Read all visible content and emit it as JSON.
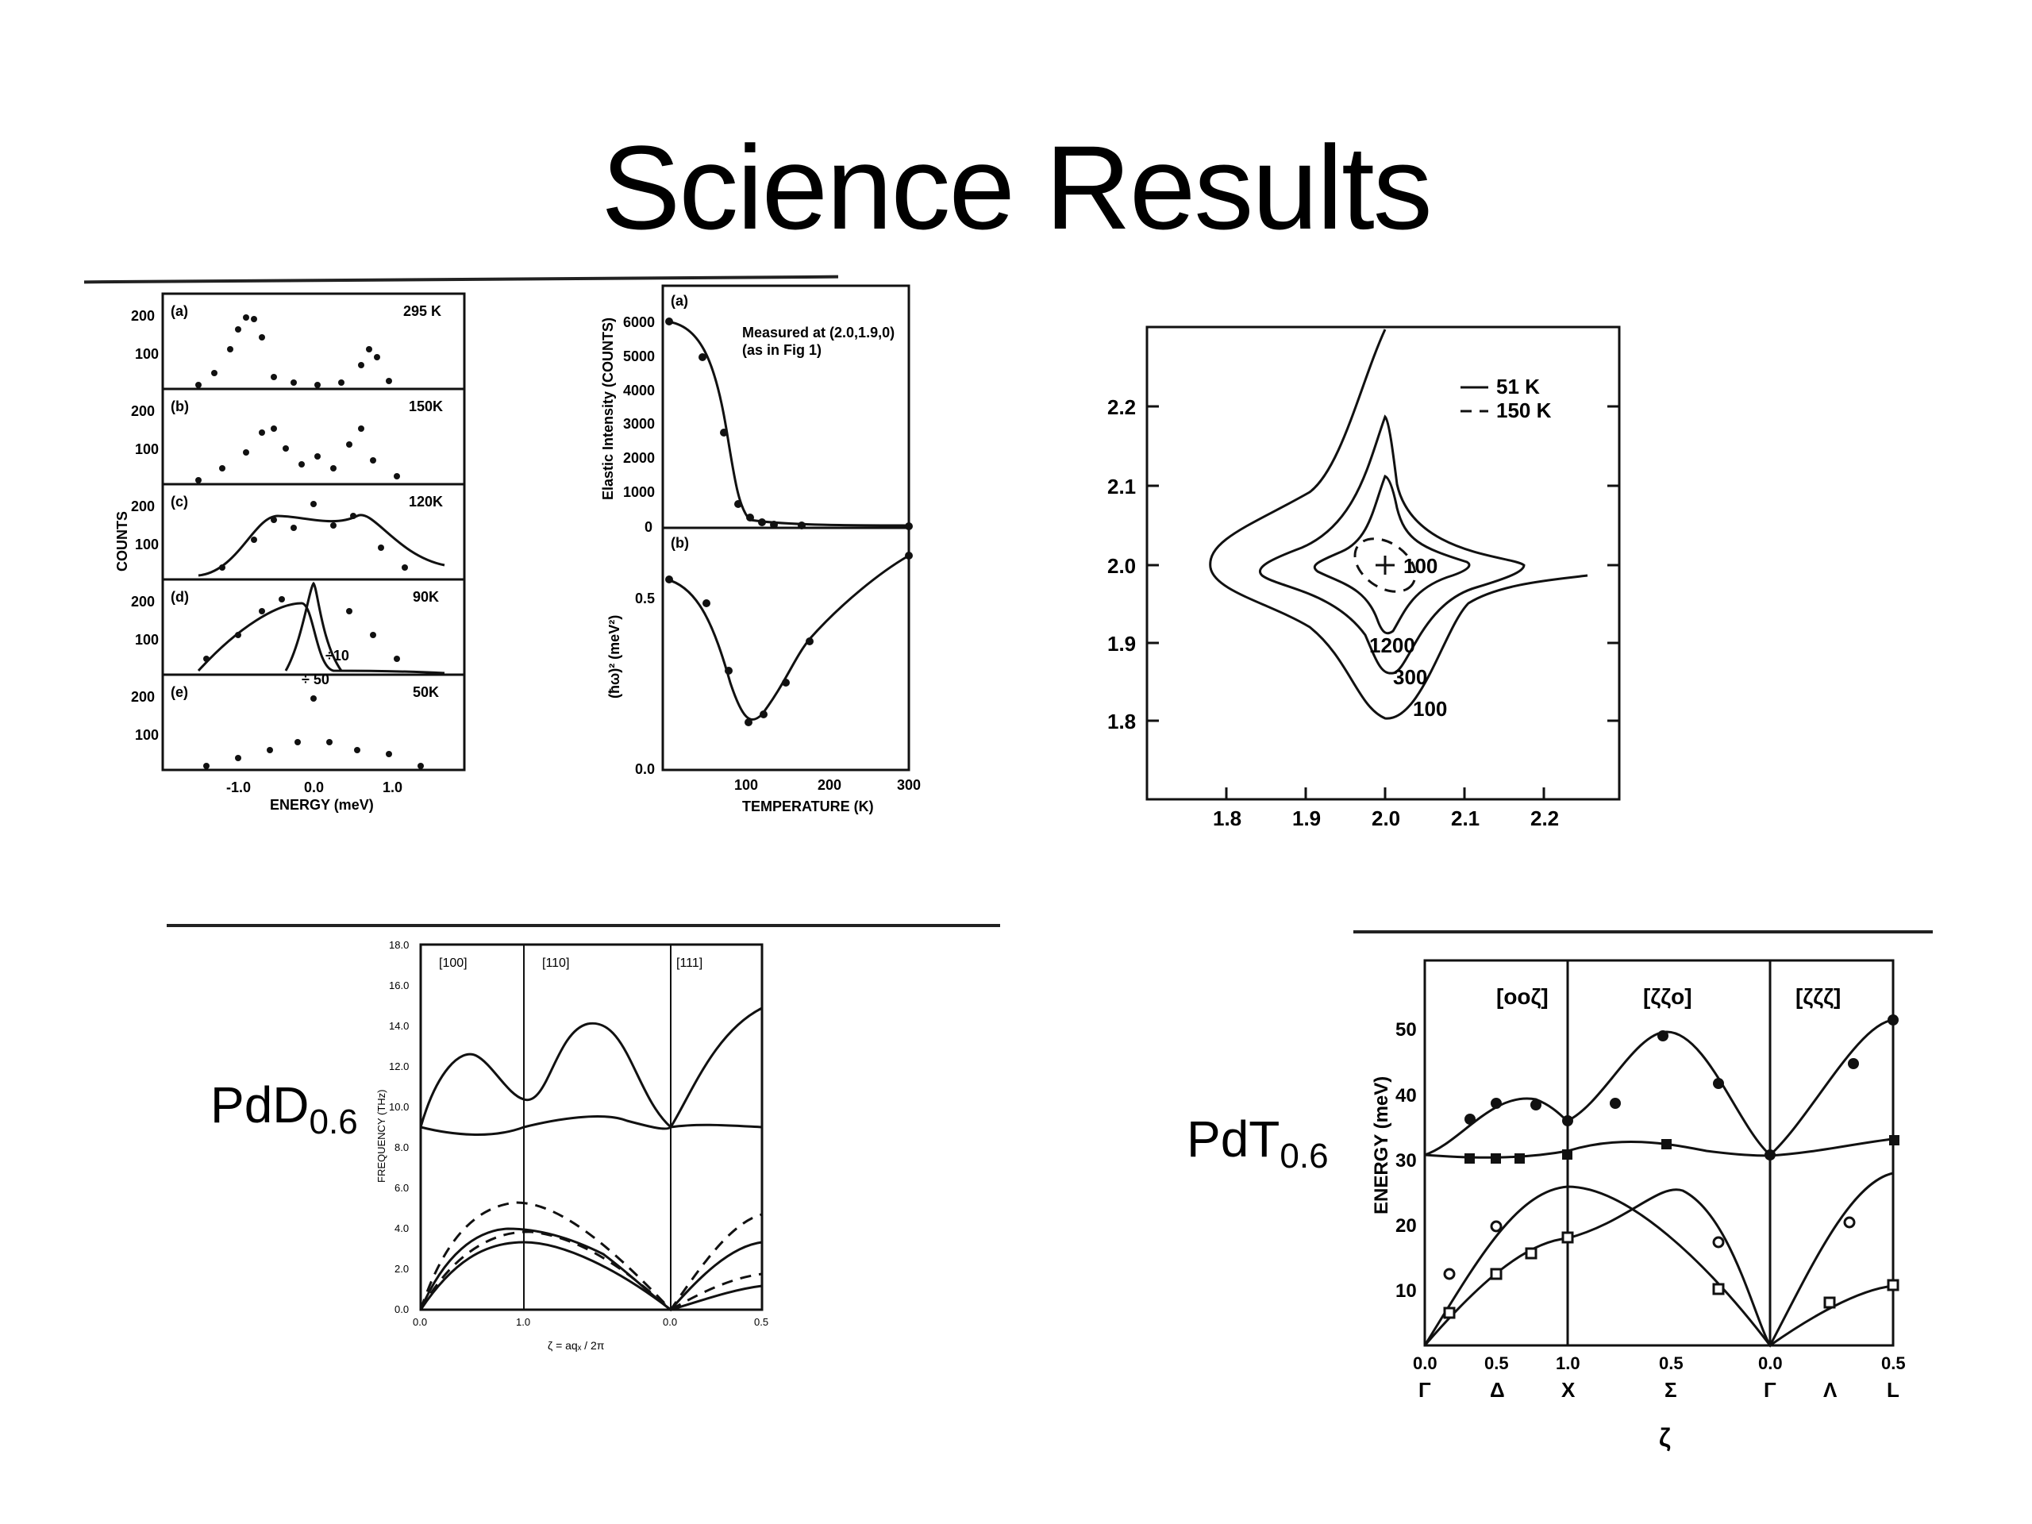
{
  "slide": {
    "title": "Science Results",
    "label_left": {
      "base": "PdD",
      "sub": "0.6"
    },
    "label_right": {
      "base": "PdT",
      "sub": "0.6"
    }
  },
  "fig1": {
    "ylabel": "COUNTS",
    "xlabel": "ENERGY (meV)",
    "xticks": [
      "-1.0",
      "0.0",
      "1.0"
    ],
    "panels": [
      {
        "tag": "(a)",
        "temp": "295 K"
      },
      {
        "tag": "(b)",
        "temp": "150K"
      },
      {
        "tag": "(c)",
        "temp": "120K"
      },
      {
        "tag": "(d)",
        "temp": "90K",
        "note": "÷10"
      },
      {
        "tag": "(e)",
        "temp": "50K",
        "note": "÷ 50"
      }
    ],
    "yticks": [
      "200",
      "100"
    ]
  },
  "fig2": {
    "panel_a": "(a)",
    "panel_b": "(b)",
    "ylabel_a": "Elastic Intensity (COUNTS)",
    "ylabel_b": "(ħω)² (meV²)",
    "note1": "Measured at (2.0,1.9,0)",
    "note2": "(as in Fig 1)",
    "xlabel": "TEMPERATURE (K)",
    "yticks_a": [
      "6000",
      "5000",
      "4000",
      "3000",
      "2000",
      "1000",
      "0"
    ],
    "yticks_b": [
      "0.5",
      "0.0"
    ],
    "xticks": [
      "100",
      "200",
      "300"
    ]
  },
  "fig3": {
    "legend_solid": "51 K",
    "legend_dash": "150 K",
    "xticks": [
      "1.8",
      "1.9",
      "2.0",
      "2.1",
      "2.2"
    ],
    "yticks": [
      "2.2",
      "2.1",
      "2.0",
      "1.9",
      "1.8"
    ],
    "levels": [
      "100",
      "1200",
      "300",
      "100"
    ]
  },
  "fig4": {
    "ylabel": "FREQUENCY (THz)",
    "xlabel": "ζ = aqₓ / 2π",
    "dirs": [
      "[100]",
      "[110]",
      "[111]"
    ],
    "yticks": [
      "18.0",
      "16.0",
      "14.0",
      "12.0",
      "10.0",
      "8.0",
      "6.0",
      "4.0",
      "2.0",
      "0.0"
    ],
    "xticks": [
      "0.0",
      "1.0",
      "0.0",
      "0.5"
    ]
  },
  "fig5": {
    "ylabel": "ENERGY (meV)",
    "xlabel": "ζ",
    "dirs": [
      "[ooζ]",
      "[ζζo]",
      "[ζζζ]"
    ],
    "yticks": [
      "50",
      "40",
      "30",
      "20",
      "10"
    ],
    "xticks": [
      "0.0",
      "0.5",
      "1.0",
      "0.5",
      "0.0",
      "0.5"
    ],
    "points": [
      "Γ",
      "Δ",
      "X",
      "Σ",
      "Γ",
      "Λ",
      "L"
    ]
  }
}
